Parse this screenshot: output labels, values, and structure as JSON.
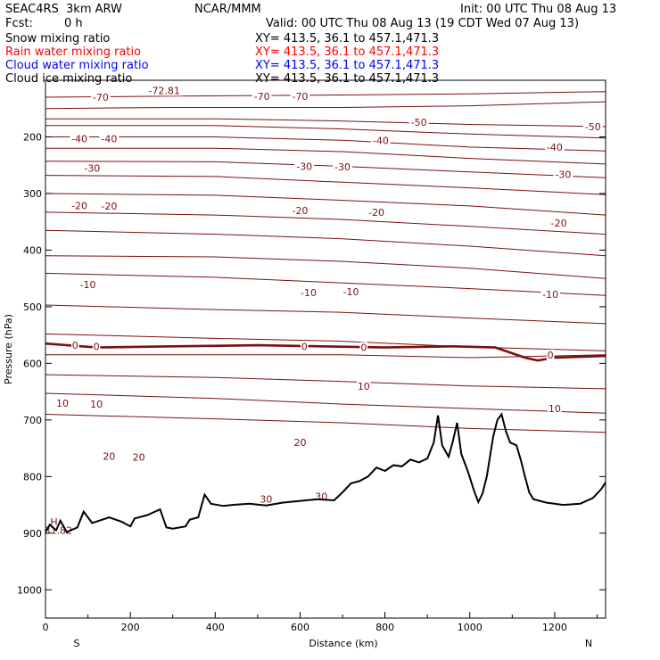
{
  "header": {
    "model": "SEAC4RS  3km ARW",
    "org": "NCAR/MMM",
    "init": "Init: 00 UTC Thu 08 Aug 13",
    "fcst_label": "Fcst:",
    "fcst_value": "0 h",
    "valid": "Valid: 00 UTC Thu 08 Aug 13 (19 CDT Wed 07 Aug 13)"
  },
  "fields": [
    {
      "name": "Snow mixing ratio",
      "xy": "XY= 413.5, 36.1 to 457.1,471.3",
      "color": "#000000"
    },
    {
      "name": "Rain water mixing ratio",
      "xy": "XY= 413.5, 36.1 to 457.1,471.3",
      "color": "#ff0000"
    },
    {
      "name": "Cloud water mixing ratio",
      "xy": "XY= 413.5, 36.1 to 457.1,471.3",
      "color": "#0000ff"
    },
    {
      "name": "Cloud ice mixing ratio",
      "xy": "XY= 413.5, 36.1 to 457.1,471.3",
      "color": "#000000"
    }
  ],
  "chart_data": {
    "type": "line",
    "title": "",
    "xlabel": "Distance (km)",
    "ylabel": "Pressure (hPa)",
    "xlim": [
      0,
      1320
    ],
    "ylim": [
      1050,
      100
    ],
    "xticks": [
      0,
      200,
      400,
      600,
      800,
      1000,
      1200
    ],
    "yticks": [
      200,
      300,
      400,
      500,
      600,
      700,
      800,
      900,
      1000
    ],
    "ytick_labels": [
      "200",
      "300",
      "400",
      "500",
      "600",
      "700",
      "800",
      "900",
      "1000"
    ],
    "endpoints": {
      "left": "S",
      "right": "N"
    },
    "contour_color": "#7a1010",
    "terrain_color": "#000000",
    "isotherms": [
      {
        "level": -70,
        "p": [
          [
            0,
            130
          ],
          [
            300,
            128
          ],
          [
            700,
            126
          ],
          [
            1000,
            124
          ],
          [
            1320,
            120
          ]
        ]
      },
      {
        "level": -60,
        "p": [
          [
            0,
            150
          ],
          [
            300,
            148
          ],
          [
            700,
            148
          ],
          [
            1000,
            145
          ],
          [
            1320,
            138
          ]
        ]
      },
      {
        "level": -50,
        "p": [
          [
            0,
            168
          ],
          [
            400,
            168
          ],
          [
            700,
            172
          ],
          [
            1000,
            178
          ],
          [
            1320,
            182
          ]
        ]
      },
      {
        "level": -45,
        "p": [
          [
            0,
            180
          ],
          [
            400,
            180
          ],
          [
            700,
            186
          ],
          [
            1000,
            195
          ],
          [
            1320,
            202
          ]
        ]
      },
      {
        "level": -40,
        "p": [
          [
            0,
            200
          ],
          [
            400,
            200
          ],
          [
            700,
            206
          ],
          [
            1000,
            218
          ],
          [
            1320,
            225
          ]
        ]
      },
      {
        "level": -35,
        "p": [
          [
            0,
            220
          ],
          [
            400,
            220
          ],
          [
            700,
            226
          ],
          [
            1000,
            238
          ],
          [
            1320,
            248
          ]
        ]
      },
      {
        "level": -30,
        "p": [
          [
            0,
            243
          ],
          [
            400,
            244
          ],
          [
            700,
            252
          ],
          [
            1000,
            262
          ],
          [
            1320,
            272
          ]
        ]
      },
      {
        "level": -25,
        "p": [
          [
            0,
            268
          ],
          [
            400,
            270
          ],
          [
            700,
            280
          ],
          [
            1000,
            290
          ],
          [
            1320,
            302
          ]
        ]
      },
      {
        "level": -20,
        "p": [
          [
            0,
            300
          ],
          [
            400,
            303
          ],
          [
            700,
            312
          ],
          [
            1000,
            322
          ],
          [
            1320,
            338
          ]
        ]
      },
      {
        "level": -15,
        "p": [
          [
            0,
            333
          ],
          [
            400,
            338
          ],
          [
            700,
            346
          ],
          [
            1000,
            358
          ],
          [
            1320,
            372
          ]
        ]
      },
      {
        "level": -10,
        "p": [
          [
            0,
            365
          ],
          [
            400,
            372
          ],
          [
            700,
            380
          ],
          [
            1000,
            393
          ],
          [
            1320,
            410
          ]
        ]
      },
      {
        "level": -5,
        "p": [
          [
            0,
            410
          ],
          [
            400,
            412
          ],
          [
            700,
            420
          ],
          [
            1000,
            432
          ],
          [
            1320,
            450
          ]
        ]
      },
      {
        "level": 0,
        "p": [
          [
            0,
            441
          ],
          [
            400,
            448
          ],
          [
            700,
            458
          ],
          [
            1000,
            468
          ],
          [
            1320,
            480
          ]
        ]
      },
      {
        "level": 5,
        "p": [
          [
            0,
            497
          ],
          [
            400,
            505
          ],
          [
            700,
            510
          ],
          [
            1000,
            520
          ],
          [
            1320,
            530
          ]
        ]
      },
      {
        "level": 10,
        "p": [
          [
            0,
            548
          ],
          [
            400,
            556
          ],
          [
            700,
            561
          ],
          [
            1000,
            571
          ],
          [
            1320,
            578
          ]
        ]
      },
      {
        "level": 15,
        "p": [
          [
            0,
            585
          ],
          [
            400,
            585
          ],
          [
            700,
            585
          ],
          [
            1000,
            590
          ],
          [
            1320,
            585
          ]
        ]
      },
      {
        "level": 20,
        "p": [
          [
            0,
            620
          ],
          [
            400,
            625
          ],
          [
            700,
            632
          ],
          [
            1000,
            640
          ],
          [
            1320,
            645
          ]
        ]
      },
      {
        "level": 25,
        "p": [
          [
            0,
            653
          ],
          [
            400,
            662
          ],
          [
            700,
            672
          ],
          [
            1000,
            680
          ],
          [
            1320,
            688
          ]
        ]
      },
      {
        "level": 30,
        "p": [
          [
            0,
            690
          ],
          [
            400,
            698
          ],
          [
            700,
            705
          ],
          [
            1000,
            715
          ],
          [
            1320,
            722
          ]
        ]
      }
    ],
    "isotherm_labels": [
      {
        "text": "-70",
        "x": 130,
        "p": 130
      },
      {
        "text": "-72.81",
        "x": 280,
        "p": 118
      },
      {
        "text": "-70",
        "x": 510,
        "p": 128
      },
      {
        "text": "-70",
        "x": 600,
        "p": 128
      },
      {
        "text": "-50",
        "x": 880,
        "p": 174
      },
      {
        "text": "-50",
        "x": 1290,
        "p": 182
      },
      {
        "text": "-40",
        "x": 80,
        "p": 203
      },
      {
        "text": "-40",
        "x": 150,
        "p": 203
      },
      {
        "text": "-40",
        "x": 790,
        "p": 206
      },
      {
        "text": "-40",
        "x": 1200,
        "p": 218
      },
      {
        "text": "-30",
        "x": 110,
        "p": 255
      },
      {
        "text": "-30",
        "x": 610,
        "p": 252
      },
      {
        "text": "-30",
        "x": 700,
        "p": 253
      },
      {
        "text": "-30",
        "x": 1220,
        "p": 266
      },
      {
        "text": "-20",
        "x": 80,
        "p": 321
      },
      {
        "text": "-20",
        "x": 150,
        "p": 322
      },
      {
        "text": "-20",
        "x": 600,
        "p": 330
      },
      {
        "text": "-20",
        "x": 780,
        "p": 333
      },
      {
        "text": "-20",
        "x": 1210,
        "p": 352
      },
      {
        "text": "-10",
        "x": 100,
        "p": 461
      },
      {
        "text": "-10",
        "x": 620,
        "p": 475
      },
      {
        "text": "-10",
        "x": 720,
        "p": 473
      },
      {
        "text": "-10",
        "x": 1190,
        "p": 478
      },
      {
        "text": "0",
        "x": 70,
        "p": 568
      },
      {
        "text": "0",
        "x": 120,
        "p": 570
      },
      {
        "text": "0",
        "x": 610,
        "p": 570
      },
      {
        "text": "0",
        "x": 750,
        "p": 572
      },
      {
        "text": "0",
        "x": 1190,
        "p": 585
      },
      {
        "text": "10",
        "x": 40,
        "p": 670
      },
      {
        "text": "10",
        "x": 120,
        "p": 672
      },
      {
        "text": "10",
        "x": 750,
        "p": 640
      },
      {
        "text": "10",
        "x": 1200,
        "p": 680
      },
      {
        "text": "20",
        "x": 150,
        "p": 764
      },
      {
        "text": "20",
        "x": 220,
        "p": 766
      },
      {
        "text": "20",
        "x": 600,
        "p": 740
      },
      {
        "text": "30",
        "x": 520,
        "p": 840
      },
      {
        "text": "30",
        "x": 650,
        "p": 835
      },
      {
        "text": "H",
        "x": 20,
        "p": 880
      },
      {
        "text": "31.82",
        "x": 30,
        "p": 895
      }
    ],
    "zero_line": [
      [
        0,
        565
      ],
      [
        120,
        572
      ],
      [
        300,
        570
      ],
      [
        500,
        568
      ],
      [
        650,
        570
      ],
      [
        800,
        572
      ],
      [
        960,
        570
      ],
      [
        1060,
        572
      ],
      [
        1130,
        590
      ],
      [
        1160,
        595
      ],
      [
        1200,
        590
      ],
      [
        1320,
        587
      ]
    ],
    "terrain": [
      [
        0,
        898
      ],
      [
        10,
        885
      ],
      [
        25,
        895
      ],
      [
        35,
        878
      ],
      [
        50,
        898
      ],
      [
        75,
        890
      ],
      [
        90,
        862
      ],
      [
        110,
        882
      ],
      [
        150,
        872
      ],
      [
        180,
        880
      ],
      [
        200,
        888
      ],
      [
        210,
        874
      ],
      [
        240,
        868
      ],
      [
        270,
        858
      ],
      [
        285,
        890
      ],
      [
        300,
        892
      ],
      [
        330,
        888
      ],
      [
        340,
        876
      ],
      [
        360,
        872
      ],
      [
        375,
        832
      ],
      [
        390,
        848
      ],
      [
        420,
        852
      ],
      [
        440,
        850
      ],
      [
        480,
        848
      ],
      [
        520,
        851
      ],
      [
        560,
        846
      ],
      [
        600,
        843
      ],
      [
        640,
        840
      ],
      [
        680,
        842
      ],
      [
        700,
        828
      ],
      [
        720,
        812
      ],
      [
        740,
        808
      ],
      [
        760,
        800
      ],
      [
        780,
        784
      ],
      [
        800,
        790
      ],
      [
        820,
        780
      ],
      [
        840,
        782
      ],
      [
        860,
        770
      ],
      [
        880,
        775
      ],
      [
        900,
        768
      ],
      [
        915,
        740
      ],
      [
        925,
        692
      ],
      [
        935,
        745
      ],
      [
        950,
        765
      ],
      [
        960,
        738
      ],
      [
        970,
        705
      ],
      [
        980,
        760
      ],
      [
        995,
        790
      ],
      [
        1010,
        825
      ],
      [
        1020,
        845
      ],
      [
        1030,
        830
      ],
      [
        1040,
        800
      ],
      [
        1055,
        730
      ],
      [
        1065,
        700
      ],
      [
        1075,
        690
      ],
      [
        1085,
        720
      ],
      [
        1095,
        740
      ],
      [
        1110,
        745
      ],
      [
        1120,
        770
      ],
      [
        1130,
        800
      ],
      [
        1140,
        828
      ],
      [
        1150,
        840
      ],
      [
        1180,
        846
      ],
      [
        1220,
        850
      ],
      [
        1260,
        848
      ],
      [
        1290,
        838
      ],
      [
        1310,
        822
      ],
      [
        1320,
        810
      ]
    ]
  }
}
